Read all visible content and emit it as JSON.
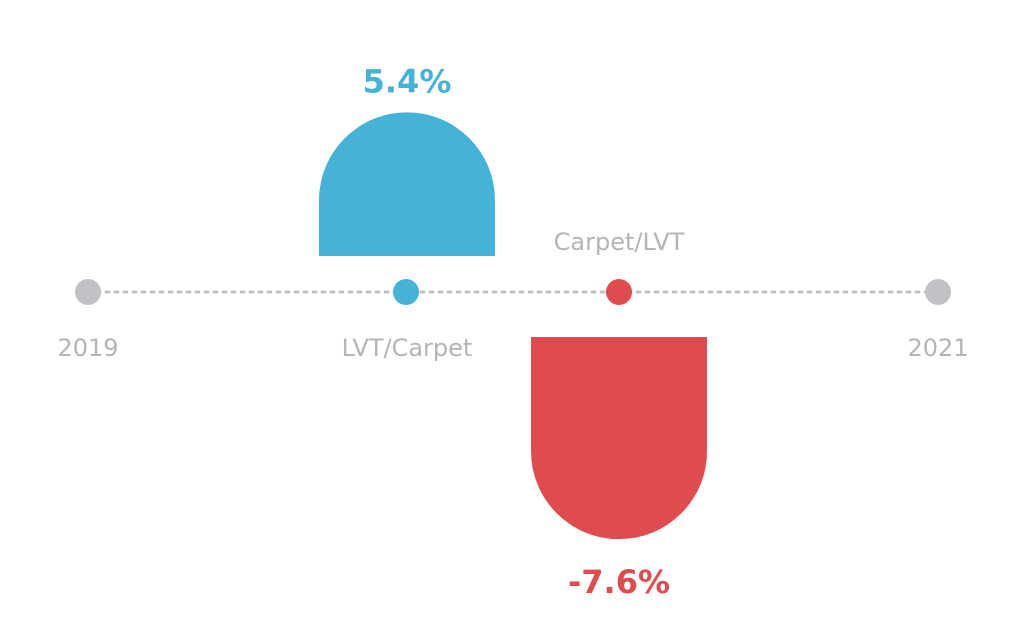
{
  "chart_data": {
    "type": "bar",
    "title": "",
    "xlabel": "",
    "ylabel": "",
    "timeline_start_label": "2019",
    "timeline_end_label": "2021",
    "categories": [
      "LVT/Carpet",
      "Carpet/LVT"
    ],
    "values": [
      5.4,
      -7.6
    ],
    "value_labels": [
      "5.4%",
      "-7.6%"
    ],
    "grid": false,
    "legend": "none"
  },
  "colors": {
    "positive": "#45b3d6",
    "negative": "#e04b4f",
    "endpoint": "#c2c2c6",
    "label_gray": "#b5b5b8",
    "timeline": "#c2c2c6"
  }
}
